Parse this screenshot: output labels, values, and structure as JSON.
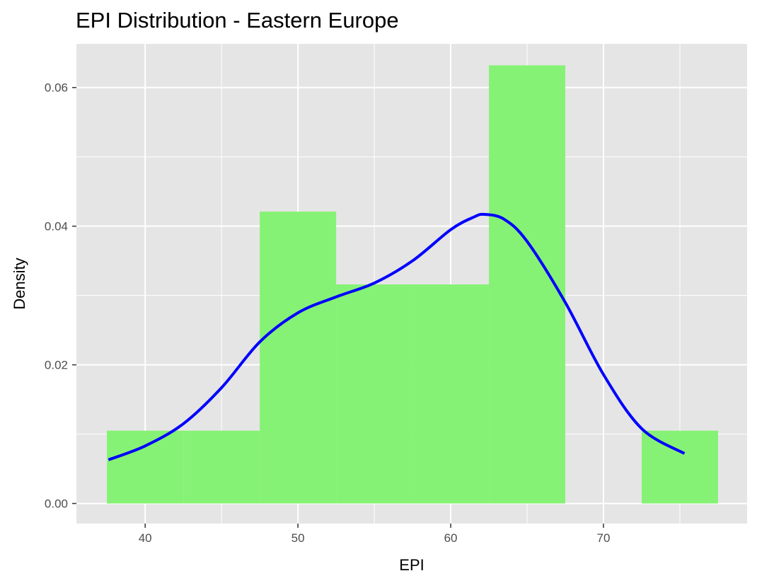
{
  "chart_data": {
    "type": "bar",
    "title": "EPI Distribution - Eastern Europe",
    "xlabel": "EPI",
    "ylabel": "Density",
    "xlim": [
      35.5,
      79.4
    ],
    "ylim": [
      -0.0029,
      0.0663
    ],
    "x_ticks": [
      40,
      50,
      60,
      70
    ],
    "y_ticks": [
      0.0,
      0.02,
      0.04,
      0.06
    ],
    "y_tick_labels": [
      "0.00",
      "0.02",
      "0.04",
      "0.06"
    ],
    "grid": true,
    "legend": "none",
    "colors": {
      "panel": "#e5e5e5",
      "grid": "#ffffff",
      "bars": "#86f275",
      "density_line": "#0000ff",
      "tick_text": "#4d4d4d",
      "tick_mark": "#333333"
    },
    "histogram": {
      "bins": [
        {
          "x0": 37.5,
          "x1": 42.5,
          "density": 0.0105
        },
        {
          "x0": 42.5,
          "x1": 47.5,
          "density": 0.0105
        },
        {
          "x0": 47.5,
          "x1": 52.5,
          "density": 0.0421
        },
        {
          "x0": 52.5,
          "x1": 57.5,
          "density": 0.0316
        },
        {
          "x0": 57.5,
          "x1": 62.5,
          "density": 0.0316
        },
        {
          "x0": 62.5,
          "x1": 67.5,
          "density": 0.0632
        },
        {
          "x0": 67.5,
          "x1": 72.5,
          "density": 0.0
        },
        {
          "x0": 72.5,
          "x1": 77.5,
          "density": 0.0105
        }
      ]
    },
    "density_curve": {
      "x": [
        37.6,
        40.0,
        42.5,
        45.0,
        47.5,
        50.0,
        52.5,
        55.0,
        57.5,
        60.0,
        61.5,
        62.2,
        63.5,
        65.0,
        67.5,
        70.0,
        72.5,
        75.3
      ],
      "y": [
        0.0063,
        0.0083,
        0.0115,
        0.0167,
        0.0233,
        0.0275,
        0.0298,
        0.0318,
        0.035,
        0.0395,
        0.0413,
        0.0417,
        0.041,
        0.0378,
        0.029,
        0.0186,
        0.0108,
        0.0072
      ]
    }
  }
}
